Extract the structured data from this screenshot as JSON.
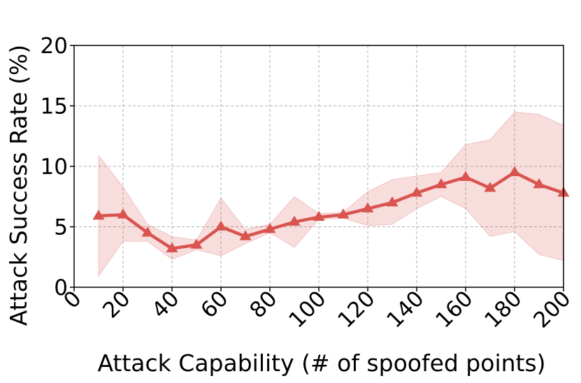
{
  "chart_data": {
    "type": "line",
    "xlabel": "Attack Capability (# of spoofed points)",
    "ylabel": "Attack Success Rate (%)",
    "xlim": [
      0,
      200
    ],
    "ylim": [
      0,
      20
    ],
    "xticks": [
      0,
      20,
      40,
      60,
      80,
      100,
      120,
      140,
      160,
      180,
      200
    ],
    "yticks": [
      0,
      5,
      10,
      15,
      20
    ],
    "grid": true,
    "series": [
      {
        "color": "#d9534f",
        "marker": "triangle",
        "x": [
          10,
          20,
          30,
          40,
          50,
          60,
          70,
          80,
          90,
          100,
          110,
          120,
          130,
          140,
          150,
          160,
          170,
          180,
          190,
          200
        ],
        "y": [
          5.9,
          6.0,
          4.5,
          3.2,
          3.5,
          5.0,
          4.2,
          4.8,
          5.4,
          5.8,
          6.0,
          6.5,
          7.0,
          7.8,
          8.5,
          9.1,
          8.2,
          9.5,
          8.5,
          7.8
        ],
        "lower": [
          0.9,
          3.8,
          3.8,
          2.3,
          3.1,
          2.6,
          3.6,
          4.5,
          3.3,
          5.6,
          5.7,
          5.1,
          5.2,
          6.5,
          7.5,
          6.5,
          4.2,
          4.6,
          2.7,
          2.2
        ],
        "upper": [
          10.9,
          8.3,
          5.2,
          4.2,
          3.9,
          7.4,
          4.8,
          5.2,
          7.5,
          6.1,
          6.2,
          7.9,
          8.9,
          9.2,
          9.5,
          11.8,
          12.2,
          14.5,
          14.3,
          13.4
        ]
      }
    ]
  }
}
